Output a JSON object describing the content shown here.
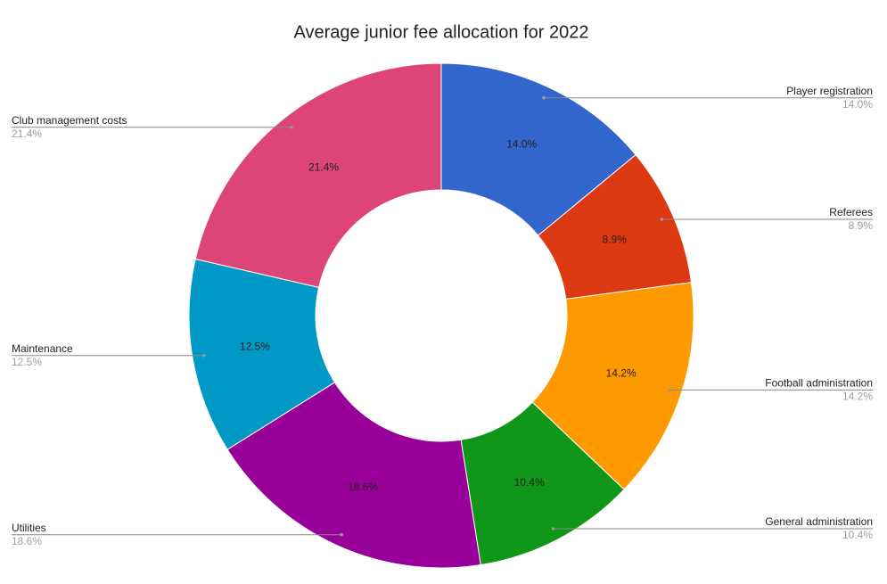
{
  "chart_data": {
    "type": "donut",
    "title": "Average junior fee allocation for 2022",
    "categories": [
      "Player registration",
      "Referees",
      "Football administration",
      "General administration",
      "Utilities",
      "Maintenance",
      "Club management costs"
    ],
    "values": [
      14.0,
      8.9,
      14.2,
      10.4,
      18.6,
      12.5,
      21.4
    ],
    "value_labels": [
      "14.0%",
      "8.9%",
      "14.2%",
      "10.4%",
      "18.6%",
      "12.5%",
      "21.4%"
    ],
    "colors": [
      "#3366cc",
      "#dc3912",
      "#ff9900",
      "#109618",
      "#990099",
      "#0099c6",
      "#dd4477"
    ]
  }
}
